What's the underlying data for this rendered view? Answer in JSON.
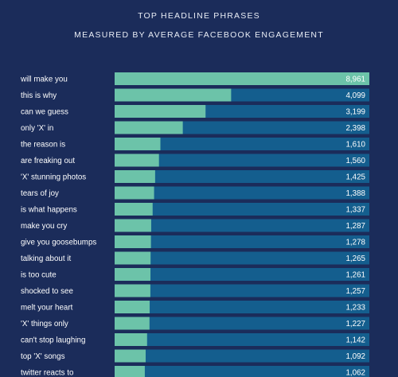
{
  "chart_data": {
    "type": "bar",
    "orientation": "horizontal",
    "title": "TOP HEADLINE PHRASES",
    "subtitle": "MEASURED BY AVERAGE FACEBOOK ENGAGEMENT",
    "categories": [
      "will make you",
      "this is why",
      "can we guess",
      "only 'X' in",
      "the reason is",
      "are freaking out",
      "'X' stunning photos",
      "tears of joy",
      "is what happens",
      "make you cry",
      "give you goosebumps",
      "talking about it",
      "is too cute",
      "shocked to see",
      "melt your heart",
      "'X' things only",
      "can't stop laughing",
      "top 'X' songs",
      "twitter reacts to"
    ],
    "values": [
      8961,
      4099,
      3199,
      2398,
      1610,
      1560,
      1425,
      1388,
      1337,
      1287,
      1278,
      1265,
      1261,
      1257,
      1233,
      1227,
      1142,
      1092,
      1062
    ],
    "value_labels": [
      "8,961",
      "4,099",
      "3,199",
      "2,398",
      "1,610",
      "1,560",
      "1,425",
      "1,388",
      "1,337",
      "1,287",
      "1,278",
      "1,265",
      "1,261",
      "1,257",
      "1,233",
      "1,227",
      "1,142",
      "1,092",
      "1,062"
    ],
    "xlim": [
      0,
      8961
    ],
    "grid": false,
    "legend": "none",
    "colors": {
      "background": "#1b2c5a",
      "track": "#145e8e",
      "bar": "#6cc3a9",
      "text": "#ffffff"
    }
  }
}
